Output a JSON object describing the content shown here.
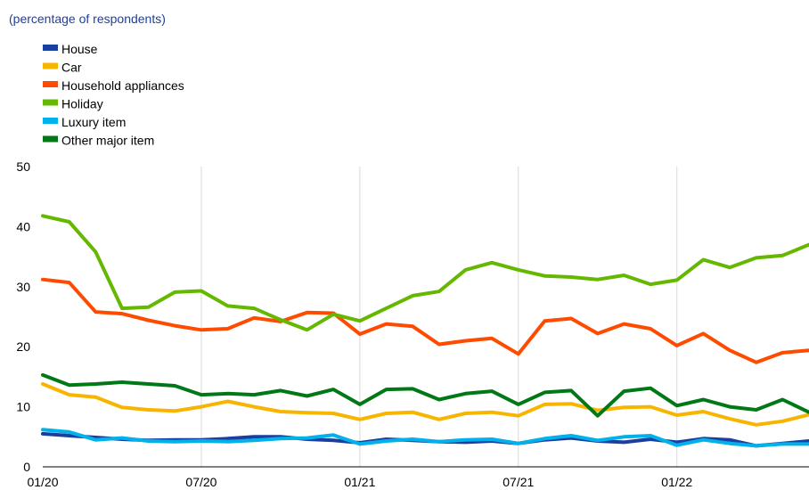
{
  "chart_data": {
    "type": "line",
    "subtitle": "(percentage of respondents)",
    "title": "",
    "xlabel": "",
    "ylabel": "",
    "ylim": [
      0,
      50
    ],
    "y_ticks": [
      0,
      10,
      20,
      30,
      40,
      50
    ],
    "x_tick_labels": [
      {
        "label": "01/20",
        "index": 0
      },
      {
        "label": "07/20",
        "index": 6
      },
      {
        "label": "01/21",
        "index": 12
      },
      {
        "label": "07/21",
        "index": 18
      },
      {
        "label": "01/22",
        "index": 24
      }
    ],
    "x": [
      "2020-01",
      "2020-02",
      "2020-03",
      "2020-04",
      "2020-05",
      "2020-06",
      "2020-07",
      "2020-08",
      "2020-09",
      "2020-10",
      "2020-11",
      "2020-12",
      "2021-01",
      "2021-02",
      "2021-03",
      "2021-04",
      "2021-05",
      "2021-06",
      "2021-07",
      "2021-08",
      "2021-09",
      "2021-10",
      "2021-11",
      "2021-12",
      "2022-01",
      "2022-02",
      "2022-03",
      "2022-04",
      "2022-05",
      "2022-06"
    ],
    "grid": "vertical",
    "legend_position": "top-left",
    "series": [
      {
        "name": "House",
        "color": "#1b3fa0",
        "values": [
          5.5,
          5.2,
          4.9,
          4.6,
          4.4,
          4.5,
          4.5,
          4.7,
          5.0,
          5.0,
          4.6,
          4.4,
          4.0,
          4.6,
          4.4,
          4.2,
          4.1,
          4.3,
          3.9,
          4.5,
          4.8,
          4.3,
          4.1,
          4.6,
          4.1,
          4.7,
          4.5,
          3.5,
          3.9,
          4.3
        ]
      },
      {
        "name": "Car",
        "color": "#f7b500",
        "values": [
          13.8,
          12.0,
          11.6,
          9.9,
          9.5,
          9.3,
          10.0,
          10.9,
          10.0,
          9.2,
          9.0,
          8.9,
          7.9,
          8.9,
          9.1,
          7.9,
          8.9,
          9.1,
          8.5,
          10.4,
          10.5,
          9.4,
          9.9,
          10.0,
          8.6,
          9.2,
          8.0,
          7.0,
          7.6,
          8.7
        ]
      },
      {
        "name": "Household appliances",
        "color": "#ff4b00",
        "values": [
          31.2,
          30.7,
          25.8,
          25.5,
          24.4,
          23.5,
          22.8,
          23.0,
          24.8,
          24.2,
          25.7,
          25.6,
          22.1,
          23.8,
          23.4,
          20.4,
          21.0,
          21.4,
          18.8,
          24.3,
          24.7,
          22.2,
          23.8,
          23.0,
          20.2,
          22.2,
          19.4,
          17.4,
          19.0,
          19.4
        ]
      },
      {
        "name": "Holiday",
        "color": "#65b800",
        "values": [
          41.8,
          40.8,
          35.8,
          26.4,
          26.6,
          29.1,
          29.3,
          26.8,
          26.4,
          24.5,
          22.8,
          25.4,
          24.3,
          26.4,
          28.5,
          29.2,
          32.8,
          34.0,
          32.8,
          31.8,
          31.6,
          31.2,
          31.9,
          30.4,
          31.1,
          34.5,
          33.2,
          34.8,
          35.2,
          37.0
        ]
      },
      {
        "name": "Luxury item",
        "color": "#00b1ea",
        "values": [
          6.2,
          5.8,
          4.5,
          4.8,
          4.3,
          4.2,
          4.3,
          4.2,
          4.4,
          4.7,
          4.8,
          5.3,
          3.8,
          4.3,
          4.6,
          4.2,
          4.5,
          4.6,
          3.9,
          4.7,
          5.2,
          4.4,
          5.0,
          5.2,
          3.6,
          4.5,
          3.9,
          3.5,
          3.8,
          3.8
        ]
      },
      {
        "name": "Other major item",
        "color": "#007816",
        "values": [
          15.3,
          13.6,
          13.8,
          14.1,
          13.8,
          13.5,
          12.0,
          12.2,
          12.0,
          12.7,
          11.8,
          12.9,
          10.4,
          12.9,
          13.0,
          11.2,
          12.2,
          12.6,
          10.4,
          12.4,
          12.7,
          8.5,
          12.6,
          13.1,
          10.2,
          11.2,
          10.0,
          9.5,
          11.2,
          9.1
        ]
      }
    ]
  }
}
